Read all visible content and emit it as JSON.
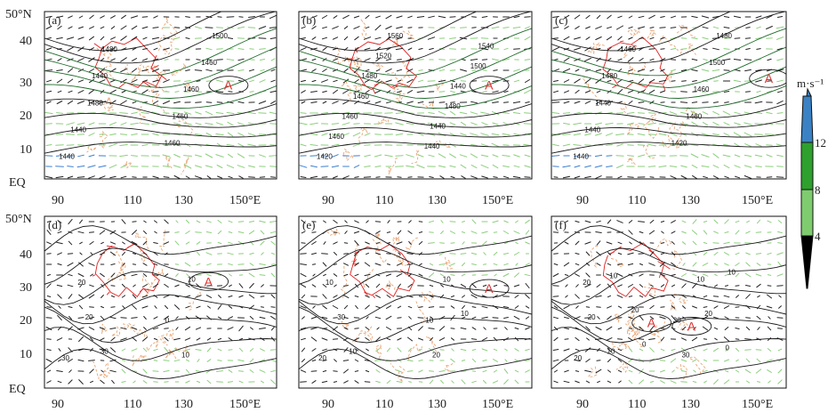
{
  "figure": {
    "lat_ticks": [
      "50°N",
      "40",
      "30",
      "20",
      "10",
      "EQ"
    ],
    "lon_ticks": [
      "90",
      "110",
      "130",
      "150°E"
    ],
    "panels": [
      {
        "id": "a",
        "label": "(a)",
        "row": 0,
        "col": 0,
        "contour_labels": [
          "1440",
          "1460",
          "1440",
          "1460",
          "1480",
          "1460",
          "1440",
          "1460",
          "1480",
          "1500"
        ],
        "high_marks": [
          {
            "text": "A",
            "lon": 143,
            "lat": 28
          }
        ]
      },
      {
        "id": "b",
        "label": "(b)",
        "row": 0,
        "col": 1,
        "contour_labels": [
          "1420",
          "1440",
          "1460",
          "1440",
          "1460",
          "1480",
          "1460",
          "1440",
          "1480",
          "1500",
          "1520",
          "1540",
          "1560"
        ],
        "high_marks": [
          {
            "text": "A",
            "lon": 145,
            "lat": 28
          }
        ]
      },
      {
        "id": "c",
        "label": "(c)",
        "row": 0,
        "col": 2,
        "contour_labels": [
          "1440",
          "1420",
          "1440",
          "1460",
          "1440",
          "1460",
          "1480",
          "1500",
          "1460",
          "1480"
        ],
        "high_marks": [
          {
            "text": "A",
            "lon": 154,
            "lat": 30
          }
        ]
      },
      {
        "id": "d",
        "label": "(d)",
        "row": 1,
        "col": 0,
        "contour_labels": [
          "30",
          "0",
          "20",
          "10",
          "20",
          "10",
          "30"
        ],
        "high_marks": [
          {
            "text": "A",
            "lon": 136,
            "lat": 31
          }
        ]
      },
      {
        "id": "e",
        "label": "(e)",
        "row": 1,
        "col": 1,
        "contour_labels": [
          "20",
          "10",
          "10",
          "20",
          "30",
          "10",
          "10",
          "10"
        ],
        "high_marks": [
          {
            "text": "A",
            "lon": 145,
            "lat": 29
          }
        ]
      },
      {
        "id": "f",
        "label": "(f)",
        "row": 1,
        "col": 2,
        "contour_labels": [
          "20",
          "30",
          "20",
          "30",
          "20",
          "10",
          "10",
          "20",
          "10",
          "0",
          "20",
          "10",
          "0"
        ],
        "high_marks": [
          {
            "text": "A",
            "lon": 113,
            "lat": 19
          },
          {
            "text": "A",
            "lon": 127,
            "lat": 18
          }
        ]
      }
    ]
  },
  "colorbar": {
    "unit": "m·s⁻¹",
    "ticks": [
      "12",
      "8",
      "4"
    ],
    "colors": [
      "#000000",
      "#7fcc6f",
      "#2ea02e",
      "#3b82c4"
    ]
  },
  "palette": {
    "contour": "#1a1a1a",
    "vector": "#222222",
    "vector_light": "#8bcf7b",
    "vector_mid": "#35a035",
    "vector_strong": "#3b7fd0",
    "terrain": "#e8a87a",
    "plateau": "#e02020",
    "high_mark": "#e03030"
  }
}
